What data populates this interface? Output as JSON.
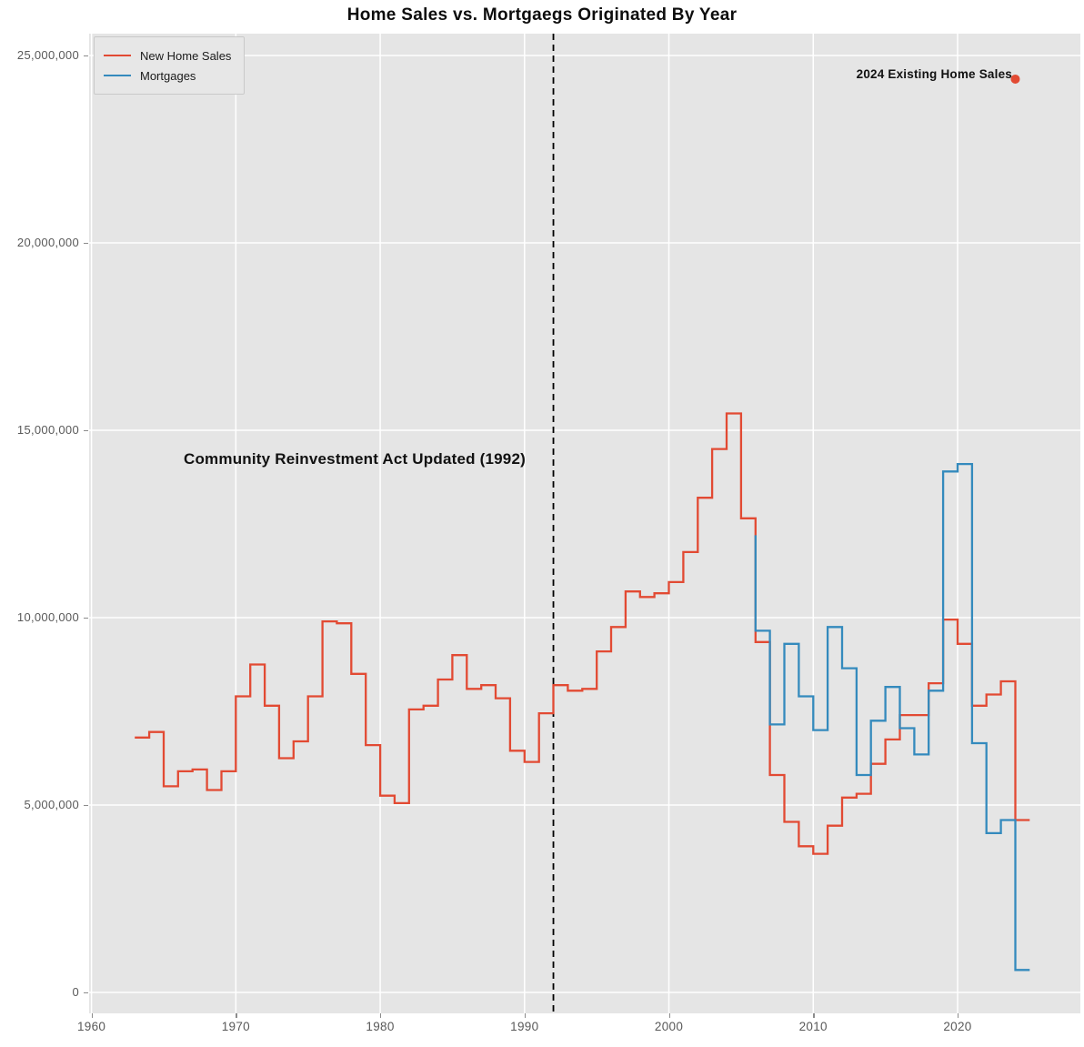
{
  "title": "Home Sales vs. Mortgaegs Originated By Year",
  "legend": {
    "items": [
      {
        "label": "New Home Sales",
        "color": "#E24A33"
      },
      {
        "label": "Mortgages",
        "color": "#348ABD"
      }
    ]
  },
  "annotations": {
    "cra": {
      "text": "Community Reinvestment Act Updated (1992)",
      "year": 1992
    },
    "existing_sales": {
      "text": "2024 Existing Home Sales",
      "year": 2024,
      "value": 24370000
    }
  },
  "colors": {
    "new_home_sales": "#E24A33",
    "mortgages": "#348ABD",
    "plot_background": "#e5e5e5",
    "gridline": "#ffffff",
    "vline": "#000000",
    "tick_text": "#595959"
  },
  "axes": {
    "x": {
      "ticks": [
        {
          "label": "1960",
          "year": 1960
        },
        {
          "label": "1970",
          "year": 1970
        },
        {
          "label": "1980",
          "year": 1980
        },
        {
          "label": "1990",
          "year": 1990
        },
        {
          "label": "2000",
          "year": 2000
        },
        {
          "label": "2010",
          "year": 2010
        },
        {
          "label": "2020",
          "year": 2020
        }
      ]
    },
    "y": {
      "ticks": [
        {
          "label": "0",
          "value": 0
        },
        {
          "label": "5,000,000",
          "value": 5000000
        },
        {
          "label": "10,000,000",
          "value": 10000000
        },
        {
          "label": "15,000,000",
          "value": 15000000
        },
        {
          "label": "20,000,000",
          "value": 20000000
        },
        {
          "label": "25,000,000",
          "value": 25000000
        }
      ]
    }
  },
  "chart_data": {
    "type": "line",
    "subtype": "step-post",
    "title": "Home Sales vs. Mortgaegs Originated By Year",
    "xlabel": "",
    "ylabel": "",
    "xlim": [
      1959.9,
      2028.5
    ],
    "ylim": [
      -550000,
      25600000
    ],
    "grid": true,
    "legend_position": "upper-left",
    "vline": {
      "year": 1992,
      "style": "dashed",
      "color": "#000000",
      "label": "Community Reinvestment Act Updated (1992)"
    },
    "marker_point": {
      "year": 2024,
      "value": 24370000,
      "color": "#E24A33",
      "label": "2024 Existing Home Sales"
    },
    "series": [
      {
        "name": "New Home Sales",
        "color": "#E24A33",
        "extend_to": 2025,
        "points": [
          [
            1963,
            6800000
          ],
          [
            1964,
            6950000
          ],
          [
            1965,
            5500000
          ],
          [
            1966,
            5900000
          ],
          [
            1967,
            5950000
          ],
          [
            1968,
            5400000
          ],
          [
            1969,
            5900000
          ],
          [
            1970,
            7900000
          ],
          [
            1971,
            8750000
          ],
          [
            1972,
            7650000
          ],
          [
            1973,
            6250000
          ],
          [
            1974,
            6700000
          ],
          [
            1975,
            7900000
          ],
          [
            1976,
            9900000
          ],
          [
            1977,
            9850000
          ],
          [
            1978,
            8500000
          ],
          [
            1979,
            6600000
          ],
          [
            1980,
            5250000
          ],
          [
            1981,
            5050000
          ],
          [
            1982,
            7550000
          ],
          [
            1983,
            7650000
          ],
          [
            1984,
            8350000
          ],
          [
            1985,
            9000000
          ],
          [
            1986,
            8100000
          ],
          [
            1987,
            8200000
          ],
          [
            1988,
            7850000
          ],
          [
            1989,
            6450000
          ],
          [
            1990,
            6150000
          ],
          [
            1991,
            7450000
          ],
          [
            1992,
            8200000
          ],
          [
            1993,
            8050000
          ],
          [
            1994,
            8100000
          ],
          [
            1995,
            9100000
          ],
          [
            1996,
            9750000
          ],
          [
            1997,
            10700000
          ],
          [
            1998,
            10550000
          ],
          [
            1999,
            10650000
          ],
          [
            2000,
            10950000
          ],
          [
            2001,
            11750000
          ],
          [
            2002,
            13200000
          ],
          [
            2003,
            14500000
          ],
          [
            2004,
            15450000
          ],
          [
            2005,
            12650000
          ],
          [
            2006,
            9350000
          ],
          [
            2007,
            5800000
          ],
          [
            2008,
            4550000
          ],
          [
            2009,
            3900000
          ],
          [
            2010,
            3700000
          ],
          [
            2011,
            4450000
          ],
          [
            2012,
            5200000
          ],
          [
            2013,
            5300000
          ],
          [
            2014,
            6100000
          ],
          [
            2015,
            6750000
          ],
          [
            2016,
            7400000
          ],
          [
            2017,
            7400000
          ],
          [
            2018,
            8250000
          ],
          [
            2019,
            9950000
          ],
          [
            2020,
            9300000
          ],
          [
            2021,
            7650000
          ],
          [
            2022,
            7950000
          ],
          [
            2023,
            8300000
          ],
          [
            2024,
            4600000
          ]
        ]
      },
      {
        "name": "Mortgages",
        "color": "#348ABD",
        "lead_in_value": 12200000,
        "extend_to": 2025,
        "points": [
          [
            2006,
            9650000
          ],
          [
            2007,
            7150000
          ],
          [
            2008,
            9300000
          ],
          [
            2009,
            7900000
          ],
          [
            2010,
            7000000
          ],
          [
            2011,
            9750000
          ],
          [
            2012,
            8650000
          ],
          [
            2013,
            5800000
          ],
          [
            2014,
            7250000
          ],
          [
            2015,
            8150000
          ],
          [
            2016,
            7050000
          ],
          [
            2017,
            6350000
          ],
          [
            2018,
            8050000
          ],
          [
            2019,
            13900000
          ],
          [
            2020,
            14100000
          ],
          [
            2021,
            6650000
          ],
          [
            2022,
            4250000
          ],
          [
            2023,
            4600000
          ],
          [
            2024,
            600000
          ]
        ]
      }
    ]
  }
}
